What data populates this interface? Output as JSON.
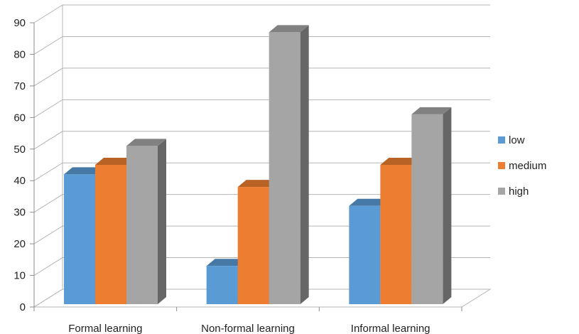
{
  "chart_data": {
    "type": "bar",
    "title": "",
    "xlabel": "",
    "ylabel": "",
    "categories": [
      "Formal learning",
      "Non-formal learning",
      "Informal learning"
    ],
    "series": [
      {
        "name": "low",
        "values": [
          42,
          13,
          32
        ],
        "color": "#5b9bd5"
      },
      {
        "name": "medium",
        "values": [
          45,
          38,
          45
        ],
        "color": "#ed7d31"
      },
      {
        "name": "high",
        "values": [
          51,
          87,
          61
        ],
        "color": "#a5a5a5"
      }
    ],
    "ylim": [
      0,
      90
    ],
    "yticks": [
      "0",
      "10",
      "20",
      "30",
      "40",
      "50",
      "60",
      "70",
      "80",
      "90"
    ],
    "grid": true,
    "legend": "right",
    "style": "3d-column"
  }
}
